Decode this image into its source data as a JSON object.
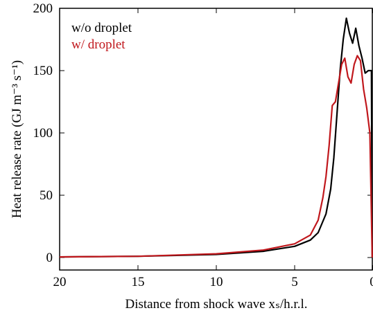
{
  "chart_data": {
    "type": "line",
    "xlabel": "Distance from shock wave xₛ/h.r.l.",
    "ylabel": "Heat release rate (GJ m⁻³ s⁻¹)",
    "xlim": [
      20,
      0
    ],
    "xticks": [
      20,
      15,
      10,
      5,
      0
    ],
    "ylim": [
      -10,
      200
    ],
    "yticks": [
      0,
      50,
      100,
      150,
      200
    ],
    "legend": "upper left",
    "series": [
      {
        "name": "w/o droplet",
        "color": "#000000",
        "x": [
          20,
          15,
          10,
          7,
          5,
          4,
          3.5,
          3,
          2.7,
          2.5,
          2.3,
          2.1,
          1.9,
          1.7,
          1.5,
          1.3,
          1.1,
          0.9,
          0.7,
          0.5,
          0.3,
          0.1,
          0.05
        ],
        "values": [
          0.5,
          1,
          2.5,
          5,
          9,
          14,
          20,
          35,
          55,
          80,
          115,
          150,
          175,
          192,
          180,
          172,
          184,
          170,
          160,
          148,
          150,
          150,
          0
        ]
      },
      {
        "name": "w/ droplet",
        "color": "#c0171c",
        "x": [
          20,
          15,
          10,
          7,
          5,
          4,
          3.5,
          3.2,
          3,
          2.8,
          2.6,
          2.4,
          2.2,
          2.0,
          1.8,
          1.6,
          1.4,
          1.2,
          1.0,
          0.8,
          0.6,
          0.4,
          0.2,
          0.05
        ],
        "values": [
          0.5,
          1,
          3,
          6,
          11,
          18,
          30,
          48,
          65,
          90,
          122,
          125,
          140,
          155,
          160,
          145,
          140,
          155,
          162,
          158,
          135,
          120,
          100,
          0
        ]
      }
    ]
  }
}
